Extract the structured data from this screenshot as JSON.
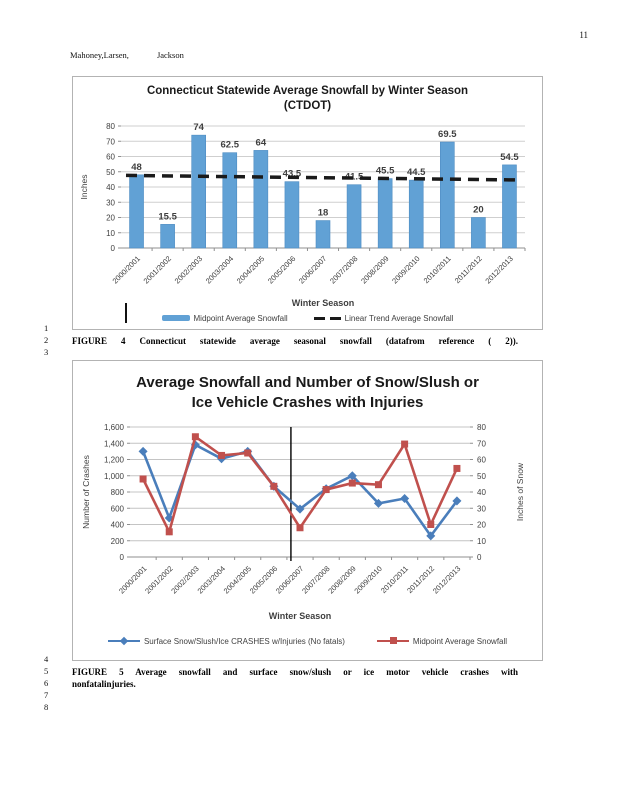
{
  "page": {
    "number": "11",
    "authors_left": "Mahoney,Larsen,",
    "authors_right": "Jackson",
    "line_numbers_top": [
      "1",
      "2",
      "3"
    ],
    "line_numbers_bottom": [
      "4",
      "5",
      "6",
      "7",
      "8"
    ],
    "figure4_caption": "FIGURE 4 Connecticut statewide average seasonal snowfall (datafrom reference ( 2)).",
    "figure5_caption_line1": "FIGURE 5 Average snowfall and surface snow/slush or ice motor vehicle crashes with",
    "figure5_caption_line2": "nonfatalinjuries."
  },
  "chart_data": [
    {
      "type": "bar",
      "title": "Connecticut Statewide Average Snowfall by Winter Season",
      "subtitle": "(CTDOT)",
      "categories": [
        "2000/2001",
        "2001/2002",
        "2002/2003",
        "2003/2004",
        "2004/2005",
        "2005/2006",
        "2006/2007",
        "2007/2008",
        "2008/2009",
        "2009/2010",
        "2010/2011",
        "2011/2012",
        "2012/2013"
      ],
      "values": [
        48,
        15.5,
        74,
        62.5,
        64,
        43.5,
        18,
        41.5,
        45.5,
        44.5,
        69.5,
        20,
        54.5
      ],
      "trend_endpoints": [
        47.6,
        44.6
      ],
      "xlabel": "Winter Season",
      "ylabel": "Inches",
      "ylim": [
        0,
        80
      ],
      "ytick_step": 10,
      "grid": true,
      "legend_position": "bottom",
      "legend": [
        "Midpoint Average Snowfall",
        "Linear Trend Average Snowfall"
      ],
      "bar_color": "#61a1d5",
      "bar_stroke": "#4e8cc2",
      "trend_color": "#1a1a1a"
    },
    {
      "type": "line",
      "title_line1": "Average Snowfall and Number of Snow/Slush or",
      "title_line2": "Ice Vehicle Crashes with Injuries",
      "categories": [
        "2000/2001",
        "2001/2002",
        "2002/2003",
        "2003/2004",
        "2004/2005",
        "2005/2006",
        "2006/2007",
        "2007/2008",
        "2008/2009",
        "2009/2010",
        "2010/2011",
        "2011/2012",
        "2012/2013"
      ],
      "series": [
        {
          "name": "Surface Snow/Slush/Ice CRASHES w/Injuries (No fatals)",
          "axis": "left",
          "color": "#4a7ebb",
          "marker": "diamond",
          "values": [
            1300,
            480,
            1380,
            1210,
            1300,
            870,
            590,
            840,
            1000,
            660,
            720,
            260,
            690
          ]
        },
        {
          "name": "Midpoint Average Snowfall",
          "axis": "right",
          "color": "#c0504d",
          "marker": "square",
          "values": [
            48,
            15.5,
            74,
            62.5,
            64,
            43.5,
            18,
            41.5,
            45.5,
            44.5,
            69.5,
            20,
            54.5
          ]
        }
      ],
      "xlabel": "Winter Season",
      "ylabel_left": "Number of Crashes",
      "ylabel_right": "Inches of Snow",
      "ylim_left": [
        0,
        1600
      ],
      "ytick_step_left": 200,
      "ylim_right": [
        0,
        80
      ],
      "ytick_step_right": 10,
      "grid": true,
      "legend_position": "bottom",
      "divider_after_index": 5
    }
  ]
}
